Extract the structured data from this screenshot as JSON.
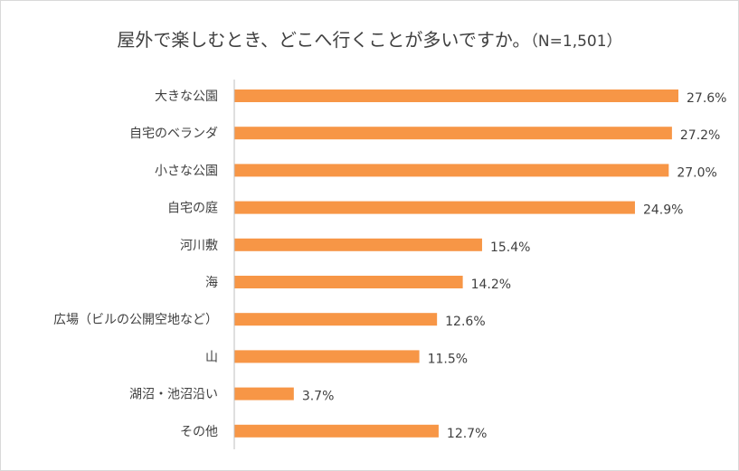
{
  "chart_data": {
    "type": "bar",
    "orientation": "horizontal",
    "title": "屋外で楽しむとき、どこへ行くことが多いですか。",
    "subtitle": "（N=1,501）",
    "categories": [
      "大きな公園",
      "自宅のベランダ",
      "小さな公園",
      "自宅の庭",
      "河川敷",
      "海",
      "広場（ビルの公開空地など）",
      "山",
      "湖沼・池沼沿い",
      "その他"
    ],
    "values": [
      27.6,
      27.2,
      27.0,
      24.9,
      15.4,
      14.2,
      12.6,
      11.5,
      3.7,
      12.7
    ],
    "labels": [
      "27.6%",
      "27.2%",
      "27.0%",
      "24.9%",
      "15.4%",
      "14.2%",
      "12.6%",
      "11.5%",
      "3.7%",
      "12.7%"
    ],
    "unit": "%",
    "xlim": [
      0,
      27.6
    ],
    "grid": false,
    "legend": "none",
    "colors": {
      "bar": "#F79646",
      "axis": "#bfbfbf",
      "text": "#404040"
    }
  }
}
